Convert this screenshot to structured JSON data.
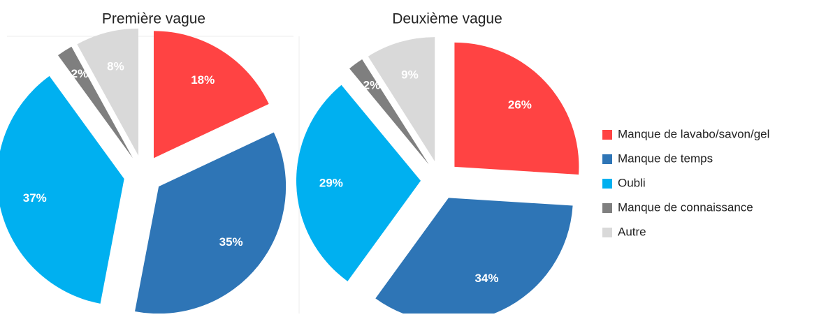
{
  "chart_data": [
    {
      "type": "pie",
      "title": "Première vague",
      "values": [
        18,
        35,
        37,
        2,
        8
      ],
      "value_labels": [
        "18%",
        "35%",
        "37%",
        "2%",
        "8%"
      ]
    },
    {
      "type": "pie",
      "title": "Deuxième vague",
      "values": [
        26,
        34,
        29,
        2,
        9
      ],
      "value_labels": [
        "26%",
        "34%",
        "29%",
        "2%",
        "9%"
      ]
    }
  ],
  "legend": {
    "categories": [
      "Manque de lavabo/savon/gel",
      "Manque de temps",
      "Oubli",
      "Manque de connaissance",
      "Autre"
    ],
    "colors": [
      "#ff4343",
      "#2e75b6",
      "#00b0f0",
      "#7f7f7f",
      "#d9d9d9"
    ]
  }
}
